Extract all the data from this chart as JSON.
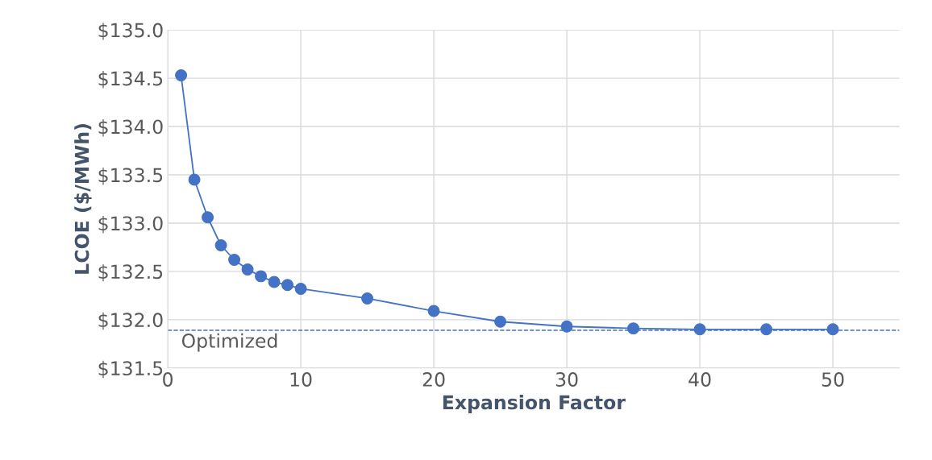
{
  "chart_data": {
    "type": "line",
    "xlabel": "Expansion Factor",
    "ylabel": "LCOE ($/MWh)",
    "x": [
      1,
      2,
      3,
      4,
      5,
      6,
      7,
      8,
      9,
      10,
      15,
      20,
      25,
      30,
      35,
      40,
      45,
      50
    ],
    "series": [
      {
        "color": "#4472c4",
        "values": [
          134.53,
          133.45,
          133.06,
          132.77,
          132.62,
          132.52,
          132.45,
          132.39,
          132.36,
          132.32,
          132.22,
          132.09,
          131.98,
          131.93,
          131.91,
          131.9,
          131.9,
          131.9
        ]
      }
    ],
    "marker": "circle",
    "line_style": "solid",
    "xlim": [
      0,
      55
    ],
    "xticks": [
      0,
      10,
      20,
      30,
      40,
      50
    ],
    "ylim": [
      131.5,
      135.0
    ],
    "yticks": [
      {
        "value": 131.5,
        "label": "$131.5"
      },
      {
        "value": 132.0,
        "label": "$132.0"
      },
      {
        "value": 132.5,
        "label": "$132.5"
      },
      {
        "value": 133.0,
        "label": "$133.0"
      },
      {
        "value": 133.5,
        "label": "$133.5"
      },
      {
        "value": 134.0,
        "label": "$134.0"
      },
      {
        "value": 134.5,
        "label": "$134.5"
      },
      {
        "value": 135.0,
        "label": "$135.0"
      }
    ],
    "ref_lines": [
      {
        "axis": "y",
        "value": 131.89,
        "label": "Optimized",
        "color": "#4472c4",
        "line_style": "dashed"
      }
    ],
    "grid": true
  }
}
